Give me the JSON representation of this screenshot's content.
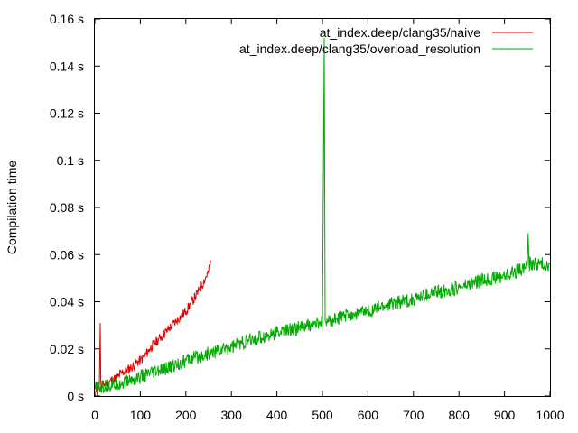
{
  "chart_data": {
    "type": "line",
    "title": "",
    "xlabel": "",
    "ylabel": "Compilation time",
    "xlim": [
      0,
      1000
    ],
    "ylim": [
      0,
      0.16
    ],
    "grid": false,
    "legend_position": "top-right",
    "x_ticks": [
      {
        "value": 0,
        "label": "0"
      },
      {
        "value": 100,
        "label": "100"
      },
      {
        "value": 200,
        "label": "200"
      },
      {
        "value": 300,
        "label": "300"
      },
      {
        "value": 400,
        "label": "400"
      },
      {
        "value": 500,
        "label": "500"
      },
      {
        "value": 600,
        "label": "600"
      },
      {
        "value": 700,
        "label": "700"
      },
      {
        "value": 800,
        "label": "800"
      },
      {
        "value": 900,
        "label": "900"
      },
      {
        "value": 1000,
        "label": "1000"
      }
    ],
    "y_ticks": [
      {
        "value": 0,
        "label": "0 s"
      },
      {
        "value": 0.02,
        "label": "0.02 s"
      },
      {
        "value": 0.04,
        "label": "0.04 s"
      },
      {
        "value": 0.06,
        "label": "0.06 s"
      },
      {
        "value": 0.08,
        "label": "0.08 s"
      },
      {
        "value": 0.1,
        "label": "0.1 s"
      },
      {
        "value": 0.12,
        "label": "0.12 s"
      },
      {
        "value": 0.14,
        "label": "0.14 s"
      },
      {
        "value": 0.16,
        "label": "0.16 s"
      }
    ],
    "series": [
      {
        "name": "at_index.deep/clang35/naive",
        "color": "#dd0000",
        "x": [
          0,
          10,
          11,
          12,
          13,
          14,
          20,
          30,
          40,
          50,
          60,
          70,
          80,
          90,
          100,
          110,
          120,
          130,
          140,
          150,
          160,
          170,
          180,
          190,
          200,
          210,
          220,
          230,
          240,
          250,
          255
        ],
        "y": [
          0.003,
          0.004,
          0.017,
          0.031,
          0.006,
          0.004,
          0.005,
          0.006,
          0.007,
          0.008,
          0.01,
          0.011,
          0.012,
          0.014,
          0.015,
          0.017,
          0.02,
          0.022,
          0.024,
          0.026,
          0.028,
          0.03,
          0.032,
          0.034,
          0.036,
          0.039,
          0.042,
          0.045,
          0.049,
          0.053,
          0.057
        ]
      },
      {
        "name": "at_index.deep/clang35/overload_resolution",
        "color": "#00aa00",
        "x": [
          0,
          50,
          100,
          150,
          200,
          250,
          300,
          350,
          400,
          450,
          500,
          502,
          504,
          506,
          508,
          550,
          600,
          650,
          700,
          750,
          800,
          850,
          900,
          950,
          952,
          954,
          1000
        ],
        "y": [
          0.003,
          0.005,
          0.008,
          0.011,
          0.015,
          0.018,
          0.021,
          0.024,
          0.027,
          0.029,
          0.031,
          0.088,
          0.152,
          0.032,
          0.031,
          0.034,
          0.036,
          0.039,
          0.041,
          0.044,
          0.046,
          0.049,
          0.051,
          0.055,
          0.069,
          0.056,
          0.056
        ]
      }
    ]
  }
}
